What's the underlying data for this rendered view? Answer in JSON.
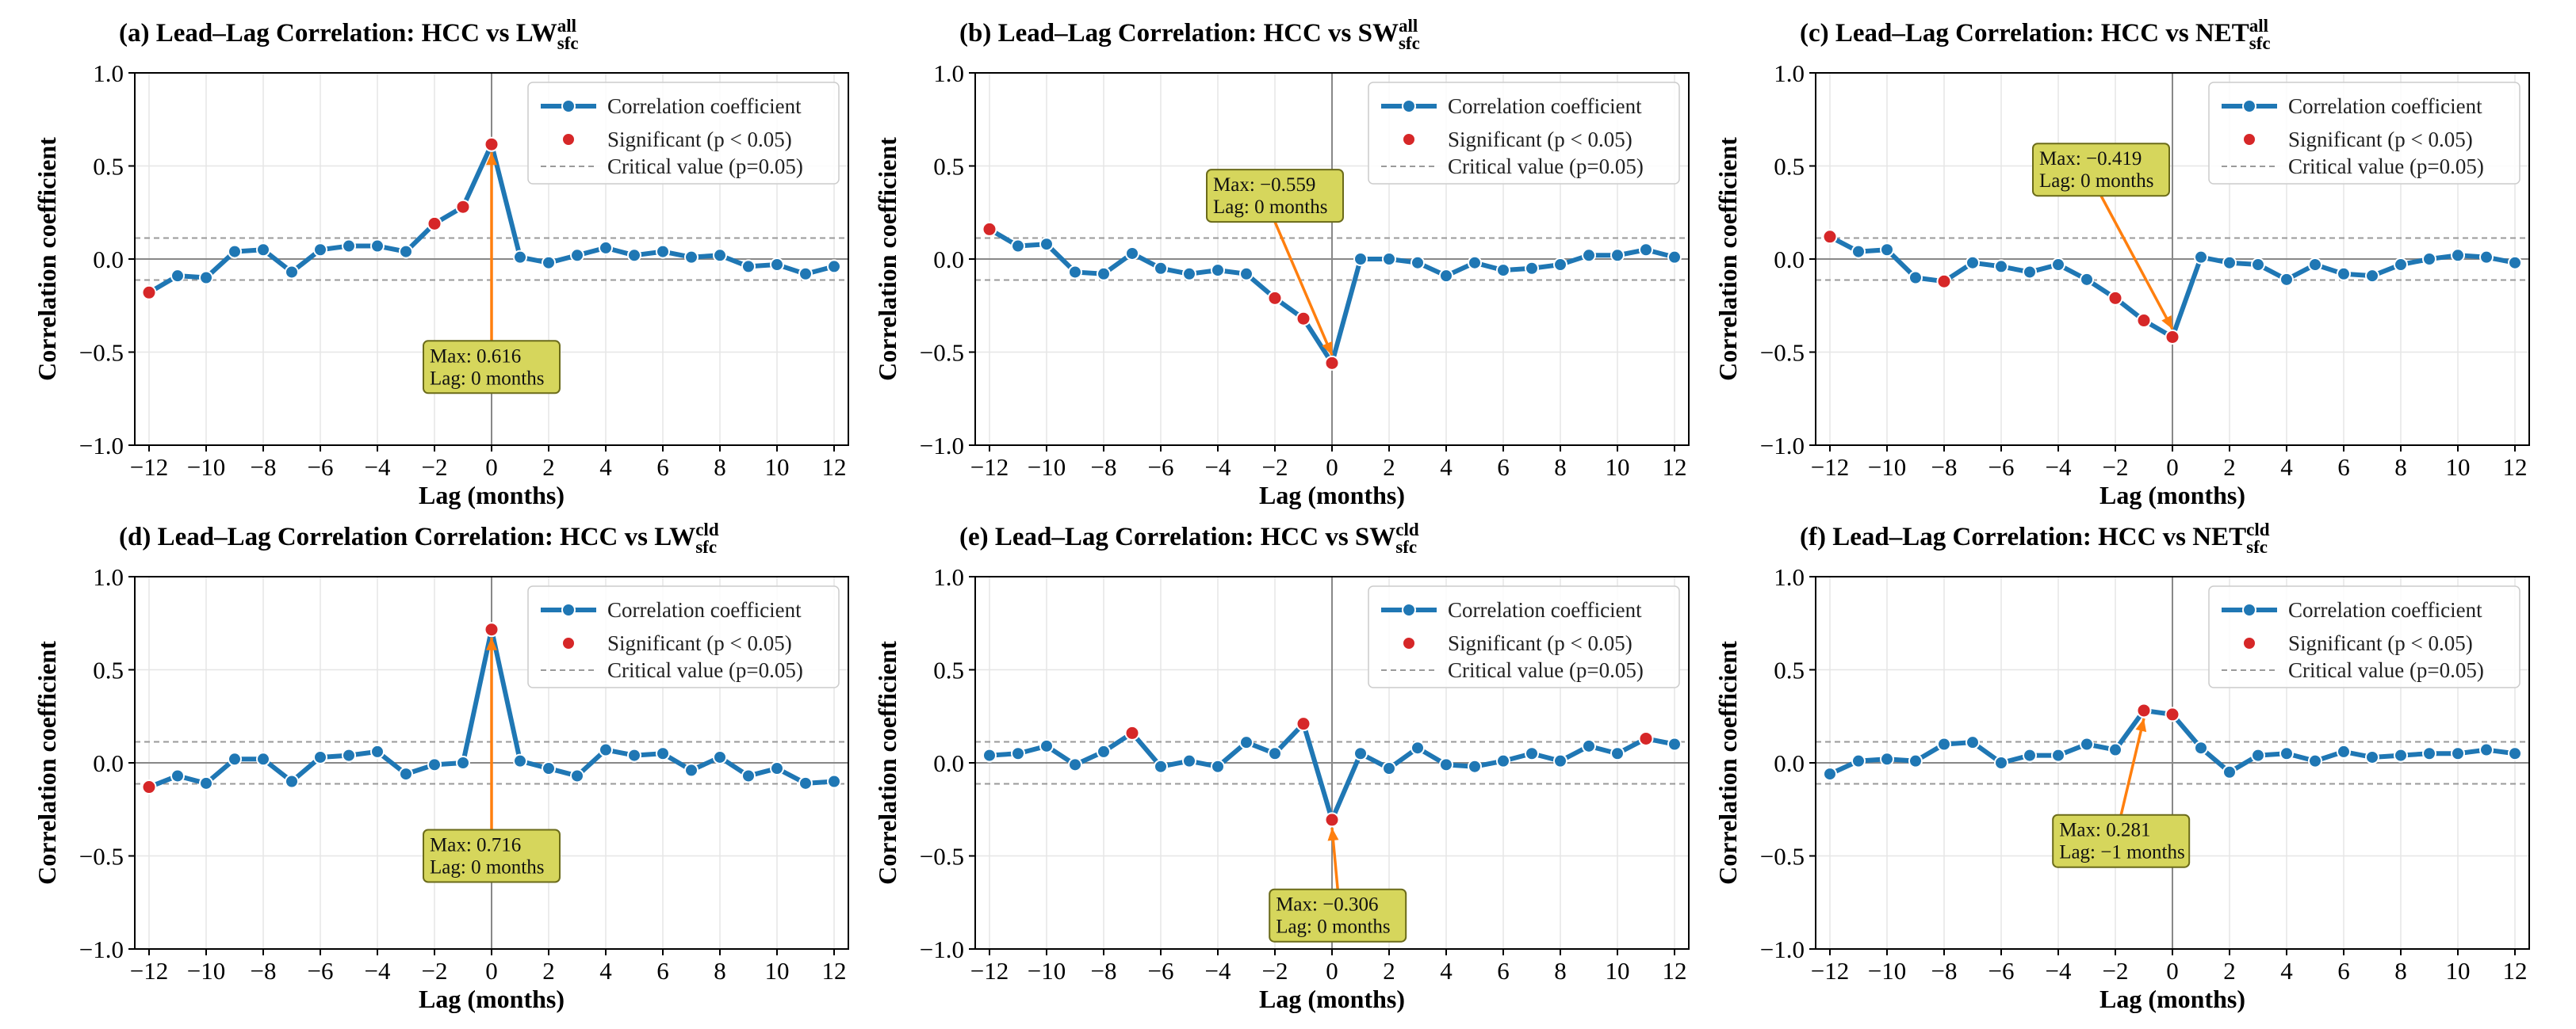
{
  "style": {
    "line_color": "#1f77b4",
    "sig_color": "#d62728",
    "arrow_color": "#ff7f0e",
    "annot_fill": "#d6d65c",
    "annot_border": "#6b6b1a",
    "grid_color": "#e6e6e6",
    "critical_color": "#9a9a9a",
    "zero_line_color": "#888888"
  },
  "legend": {
    "corr": "Correlation coefficient",
    "sig": "Significant (p < 0.05)",
    "crit": "Critical value (p=0.05)"
  },
  "chart_data": [
    {
      "type": "line",
      "title_prefix": "(a) Lead–Lag Correlation: HCC vs LW",
      "title_sup": "all",
      "title_sub": "sfc",
      "xlabel": "Lag (months)",
      "ylabel": "Correlation coefficient",
      "xlim": [
        -12.5,
        12.5
      ],
      "ylim": [
        -1.0,
        1.0
      ],
      "xticks": [
        -12,
        -10,
        -8,
        -6,
        -4,
        -2,
        0,
        2,
        4,
        6,
        8,
        10,
        12
      ],
      "xtick_labels": [
        "−12",
        "−10",
        "−8",
        "−6",
        "−4",
        "−2",
        "0",
        "2",
        "4",
        "6",
        "8",
        "10",
        "12"
      ],
      "yticks": [
        -1.0,
        -0.5,
        0.0,
        0.5,
        1.0
      ],
      "ytick_labels": [
        "−1.0",
        "−0.5",
        "0.0",
        "0.5",
        "1.0"
      ],
      "critical_value": 0.113,
      "x": [
        -12,
        -11,
        -10,
        -9,
        -8,
        -7,
        -6,
        -5,
        -4,
        -3,
        -2,
        -1,
        0,
        1,
        2,
        3,
        4,
        5,
        6,
        7,
        8,
        9,
        10,
        11,
        12
      ],
      "values": [
        -0.18,
        -0.09,
        -0.1,
        0.04,
        0.05,
        -0.07,
        0.05,
        0.07,
        0.07,
        0.04,
        0.19,
        0.28,
        0.616,
        0.01,
        -0.02,
        0.02,
        0.06,
        0.02,
        0.04,
        0.01,
        0.02,
        -0.04,
        -0.03,
        -0.08,
        -0.04
      ],
      "significant_lags": [
        -12,
        -2,
        -1,
        0
      ],
      "annotation": {
        "line1": "Max: 0.616",
        "line2": "Lag: 0 months",
        "lag": 0,
        "value": 0.616,
        "box_x": 0,
        "box_y": -0.58
      }
    },
    {
      "type": "line",
      "title_prefix": "(b) Lead–Lag Correlation: HCC vs SW",
      "title_sup": "all",
      "title_sub": "sfc",
      "xlabel": "Lag (months)",
      "ylabel": "Correlation coefficient",
      "xlim": [
        -12.5,
        12.5
      ],
      "ylim": [
        -1.0,
        1.0
      ],
      "xticks": [
        -12,
        -10,
        -8,
        -6,
        -4,
        -2,
        0,
        2,
        4,
        6,
        8,
        10,
        12
      ],
      "xtick_labels": [
        "−12",
        "−10",
        "−8",
        "−6",
        "−4",
        "−2",
        "0",
        "2",
        "4",
        "6",
        "8",
        "10",
        "12"
      ],
      "yticks": [
        -1.0,
        -0.5,
        0.0,
        0.5,
        1.0
      ],
      "ytick_labels": [
        "−1.0",
        "−0.5",
        "0.0",
        "0.5",
        "1.0"
      ],
      "critical_value": 0.113,
      "x": [
        -12,
        -11,
        -10,
        -9,
        -8,
        -7,
        -6,
        -5,
        -4,
        -3,
        -2,
        -1,
        0,
        1,
        2,
        3,
        4,
        5,
        6,
        7,
        8,
        9,
        10,
        11,
        12
      ],
      "values": [
        0.16,
        0.07,
        0.08,
        -0.07,
        -0.08,
        0.03,
        -0.05,
        -0.08,
        -0.06,
        -0.08,
        -0.21,
        -0.32,
        -0.559,
        0.0,
        0.0,
        -0.02,
        -0.09,
        -0.02,
        -0.06,
        -0.05,
        -0.03,
        0.02,
        0.02,
        0.05,
        0.01
      ],
      "significant_lags": [
        -12,
        -2,
        -1,
        0
      ],
      "annotation": {
        "line1": "Max: −0.559",
        "line2": "Lag: 0 months",
        "lag": 0,
        "value": -0.559,
        "box_x": -2.0,
        "box_y": 0.34
      }
    },
    {
      "type": "line",
      "title_prefix": "(c) Lead–Lag Correlation: HCC vs NET",
      "title_sup": "all",
      "title_sub": "sfc",
      "xlabel": "Lag (months)",
      "ylabel": "Correlation coefficient",
      "xlim": [
        -12.5,
        12.5
      ],
      "ylim": [
        -1.0,
        1.0
      ],
      "xticks": [
        -12,
        -10,
        -8,
        -6,
        -4,
        -2,
        0,
        2,
        4,
        6,
        8,
        10,
        12
      ],
      "xtick_labels": [
        "−12",
        "−10",
        "−8",
        "−6",
        "−4",
        "−2",
        "0",
        "2",
        "4",
        "6",
        "8",
        "10",
        "12"
      ],
      "yticks": [
        -1.0,
        -0.5,
        0.0,
        0.5,
        1.0
      ],
      "ytick_labels": [
        "−1.0",
        "−0.5",
        "0.0",
        "0.5",
        "1.0"
      ],
      "critical_value": 0.113,
      "x": [
        -12,
        -11,
        -10,
        -9,
        -8,
        -7,
        -6,
        -5,
        -4,
        -3,
        -2,
        -1,
        0,
        1,
        2,
        3,
        4,
        5,
        6,
        7,
        8,
        9,
        10,
        11,
        12
      ],
      "values": [
        0.12,
        0.04,
        0.05,
        -0.1,
        -0.12,
        -0.02,
        -0.04,
        -0.07,
        -0.03,
        -0.11,
        -0.21,
        -0.33,
        -0.419,
        0.01,
        -0.02,
        -0.03,
        -0.11,
        -0.03,
        -0.08,
        -0.09,
        -0.03,
        0.0,
        0.02,
        0.01,
        -0.02
      ],
      "significant_lags": [
        -12,
        -8,
        -2,
        -1,
        0
      ],
      "annotation": {
        "line1": "Max: −0.419",
        "line2": "Lag: 0 months",
        "lag": 0,
        "value": -0.419,
        "box_x": -2.5,
        "box_y": 0.48
      }
    },
    {
      "type": "line",
      "title_prefix": "(d) Lead–Lag Correlation Correlation: HCC vs LW",
      "title_sup": "cld",
      "title_sub": "sfc",
      "xlabel": "Lag (months)",
      "ylabel": "Correlation coefficient",
      "xlim": [
        -12.5,
        12.5
      ],
      "ylim": [
        -1.0,
        1.0
      ],
      "xticks": [
        -12,
        -10,
        -8,
        -6,
        -4,
        -2,
        0,
        2,
        4,
        6,
        8,
        10,
        12
      ],
      "xtick_labels": [
        "−12",
        "−10",
        "−8",
        "−6",
        "−4",
        "−2",
        "0",
        "2",
        "4",
        "6",
        "8",
        "10",
        "12"
      ],
      "yticks": [
        -1.0,
        -0.5,
        0.0,
        0.5,
        1.0
      ],
      "ytick_labels": [
        "−1.0",
        "−0.5",
        "0.0",
        "0.5",
        "1.0"
      ],
      "critical_value": 0.113,
      "x": [
        -12,
        -11,
        -10,
        -9,
        -8,
        -7,
        -6,
        -5,
        -4,
        -3,
        -2,
        -1,
        0,
        1,
        2,
        3,
        4,
        5,
        6,
        7,
        8,
        9,
        10,
        11,
        12
      ],
      "values": [
        -0.13,
        -0.07,
        -0.11,
        0.02,
        0.02,
        -0.1,
        0.03,
        0.04,
        0.06,
        -0.06,
        -0.01,
        0.0,
        0.716,
        0.01,
        -0.03,
        -0.07,
        0.07,
        0.04,
        0.05,
        -0.04,
        0.03,
        -0.07,
        -0.03,
        -0.11,
        -0.1
      ],
      "significant_lags": [
        -12,
        0
      ],
      "annotation": {
        "line1": "Max: 0.716",
        "line2": "Lag: 0 months",
        "lag": 0,
        "value": 0.716,
        "box_x": 0,
        "box_y": -0.5
      }
    },
    {
      "type": "line",
      "title_prefix": "(e) Lead–Lag Correlation: HCC vs SW",
      "title_sup": "cld",
      "title_sub": "sfc",
      "xlabel": "Lag (months)",
      "ylabel": "Correlation coefficient",
      "xlim": [
        -12.5,
        12.5
      ],
      "ylim": [
        -1.0,
        1.0
      ],
      "xticks": [
        -12,
        -10,
        -8,
        -6,
        -4,
        -2,
        0,
        2,
        4,
        6,
        8,
        10,
        12
      ],
      "xtick_labels": [
        "−12",
        "−10",
        "−8",
        "−6",
        "−4",
        "−2",
        "0",
        "2",
        "4",
        "6",
        "8",
        "10",
        "12"
      ],
      "yticks": [
        -1.0,
        -0.5,
        0.0,
        0.5,
        1.0
      ],
      "ytick_labels": [
        "−1.0",
        "−0.5",
        "0.0",
        "0.5",
        "1.0"
      ],
      "critical_value": 0.113,
      "x": [
        -12,
        -11,
        -10,
        -9,
        -8,
        -7,
        -6,
        -5,
        -4,
        -3,
        -2,
        -1,
        0,
        1,
        2,
        3,
        4,
        5,
        6,
        7,
        8,
        9,
        10,
        11,
        12
      ],
      "values": [
        0.04,
        0.05,
        0.09,
        -0.01,
        0.06,
        0.16,
        -0.02,
        0.01,
        -0.02,
        0.11,
        0.05,
        0.21,
        -0.306,
        0.05,
        -0.03,
        0.08,
        -0.01,
        -0.02,
        0.01,
        0.05,
        0.01,
        0.09,
        0.05,
        0.13,
        0.1
      ],
      "significant_lags": [
        -7,
        -1,
        0,
        11
      ],
      "annotation": {
        "line1": "Max: −0.306",
        "line2": "Lag: 0 months",
        "lag": 0,
        "value": -0.306,
        "box_x": 0.2,
        "box_y": -0.82
      }
    },
    {
      "type": "line",
      "title_prefix": "(f) Lead–Lag Correlation: HCC vs NET",
      "title_sup": "cld",
      "title_sub": "sfc",
      "xlabel": "Lag (months)",
      "ylabel": "Correlation coefficient",
      "xlim": [
        -12.5,
        12.5
      ],
      "ylim": [
        -1.0,
        1.0
      ],
      "xticks": [
        -12,
        -10,
        -8,
        -6,
        -4,
        -2,
        0,
        2,
        4,
        6,
        8,
        10,
        12
      ],
      "xtick_labels": [
        "−12",
        "−10",
        "−8",
        "−6",
        "−4",
        "−2",
        "0",
        "2",
        "4",
        "6",
        "8",
        "10",
        "12"
      ],
      "yticks": [
        -1.0,
        -0.5,
        0.0,
        0.5,
        1.0
      ],
      "ytick_labels": [
        "−1.0",
        "−0.5",
        "0.0",
        "0.5",
        "1.0"
      ],
      "critical_value": 0.113,
      "x": [
        -12,
        -11,
        -10,
        -9,
        -8,
        -7,
        -6,
        -5,
        -4,
        -3,
        -2,
        -1,
        0,
        1,
        2,
        3,
        4,
        5,
        6,
        7,
        8,
        9,
        10,
        11,
        12
      ],
      "values": [
        -0.06,
        0.01,
        0.02,
        0.01,
        0.1,
        0.11,
        0.0,
        0.04,
        0.04,
        0.1,
        0.07,
        0.281,
        0.26,
        0.08,
        -0.05,
        0.04,
        0.05,
        0.01,
        0.06,
        0.03,
        0.04,
        0.05,
        0.05,
        0.07,
        0.05
      ],
      "significant_lags": [
        -1,
        0
      ],
      "annotation": {
        "line1": "Max: 0.281",
        "line2": "Lag: −1 months",
        "lag": -1,
        "value": 0.281,
        "box_x": -1.8,
        "box_y": -0.42
      }
    }
  ]
}
